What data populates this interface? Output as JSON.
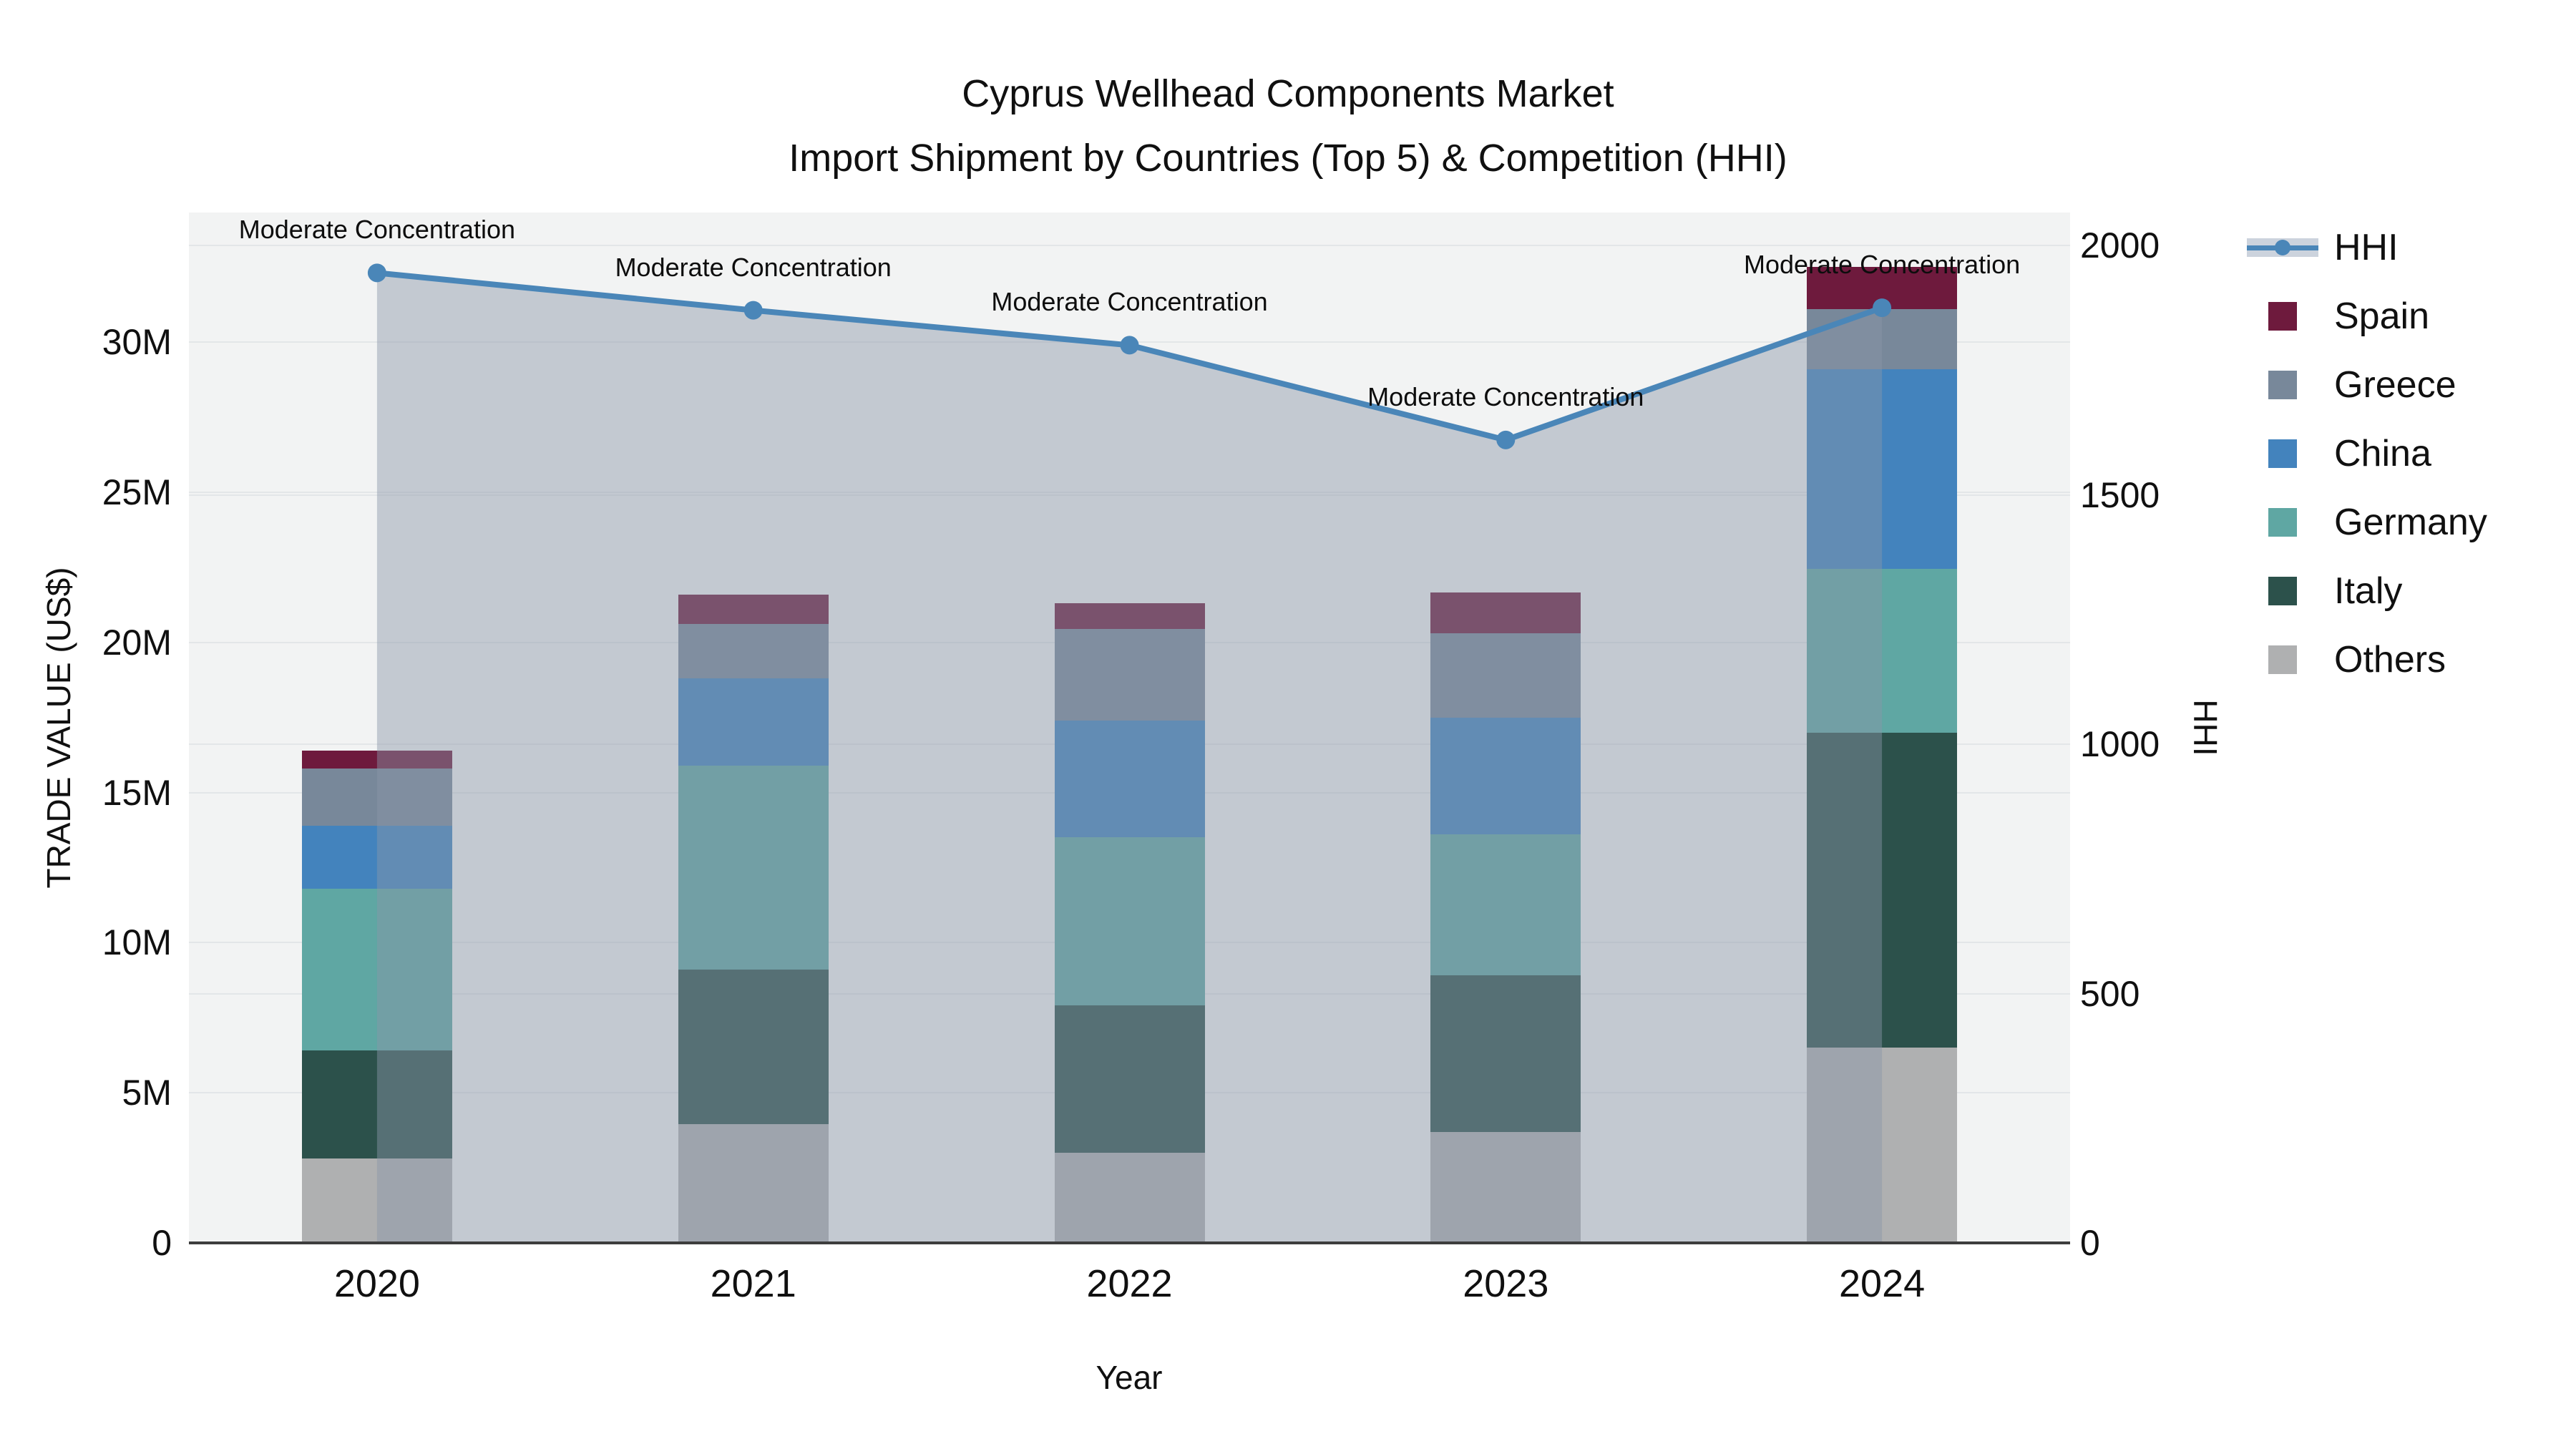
{
  "title": {
    "line1": "Cyprus Wellhead Components Market",
    "line2": "Import Shipment by Countries (Top 5) & Competition (HHI)"
  },
  "axes": {
    "x": {
      "title": "Year",
      "ticks": [
        "2020",
        "2021",
        "2022",
        "2023",
        "2024"
      ]
    },
    "y_left": {
      "title": "TRADE VALUE (US$)",
      "tick_labels": [
        "0",
        "5M",
        "10M",
        "15M",
        "20M",
        "25M",
        "30M"
      ],
      "tick_values": [
        0,
        5,
        10,
        15,
        20,
        25,
        30
      ],
      "range": [
        0,
        34.3
      ]
    },
    "y_right": {
      "title": "HHI",
      "tick_labels": [
        "0",
        "500",
        "1000",
        "1500",
        "2000"
      ],
      "tick_values": [
        0,
        500,
        1000,
        1500,
        2000
      ],
      "range": [
        0,
        2066
      ]
    }
  },
  "chart_data": {
    "type": "bar",
    "subtype": "stacked-bar-with-line",
    "title": "Cyprus Wellhead Components Market — Import Shipment by Countries (Top 5) & Competition (HHI)",
    "categories": [
      "2020",
      "2021",
      "2022",
      "2023",
      "2024"
    ],
    "value_unit": "M US$",
    "series": [
      {
        "name": "Others",
        "color": "#afb0b1",
        "values": [
          2.8,
          3.95,
          3.0,
          3.7,
          6.5
        ]
      },
      {
        "name": "Italy",
        "color": "#2c514b",
        "values": [
          3.6,
          5.15,
          4.9,
          5.2,
          10.5
        ]
      },
      {
        "name": "Germany",
        "color": "#5fa7a3",
        "values": [
          5.4,
          6.8,
          5.6,
          4.7,
          5.45
        ]
      },
      {
        "name": "China",
        "color": "#4383bd",
        "values": [
          2.1,
          2.9,
          3.9,
          3.9,
          6.65
        ]
      },
      {
        "name": "Greece",
        "color": "#78889a",
        "values": [
          1.9,
          1.8,
          3.05,
          2.8,
          2.0
        ]
      },
      {
        "name": "Spain",
        "color": "#6e1a3d",
        "values": [
          0.6,
          1.0,
          0.85,
          1.35,
          1.4
        ]
      }
    ],
    "bar_totals": [
      16.4,
      21.6,
      21.3,
      21.65,
      32.5
    ],
    "line": {
      "name": "HHI",
      "axis": "right",
      "color": "#4a86b8",
      "area_fill": "rgba(138,150,168,0.45)",
      "values": [
        1945,
        1870,
        1800,
        1610,
        1875
      ]
    },
    "annotations": [
      {
        "text": "Moderate Concentration"
      },
      {
        "text": "Moderate Concentration"
      },
      {
        "text": "Moderate Concentration"
      },
      {
        "text": "Moderate Concentration"
      },
      {
        "text": "Moderate Concentration"
      }
    ],
    "legend_order": [
      "HHI",
      "Spain",
      "Greece",
      "China",
      "Germany",
      "Italy",
      "Others"
    ],
    "legend_position": "right",
    "grid": true
  },
  "colors": {
    "plot_background": "#f2f3f3",
    "grid": "#e3e6e8",
    "axis_line": "#3d3d3d",
    "text": "#101010",
    "hhi_line": "#4a86b8",
    "area_fill": "rgba(138,150,168,0.45)"
  }
}
